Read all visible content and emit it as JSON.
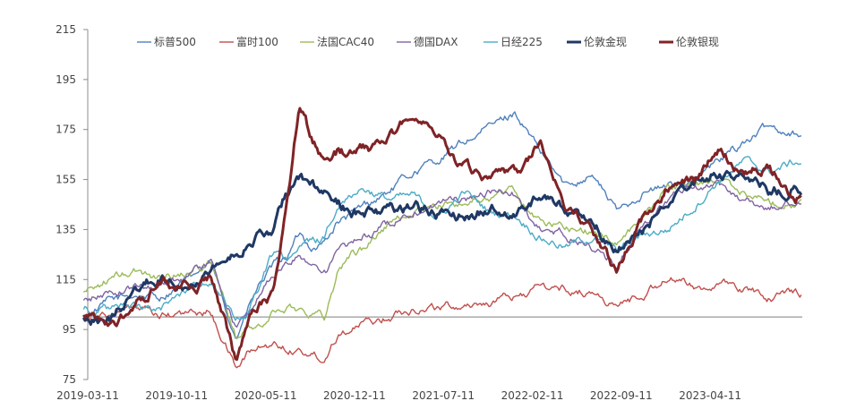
{
  "chart_data": {
    "type": "line",
    "title": "",
    "xlabel": "",
    "ylabel": "",
    "ylim": [
      75,
      215
    ],
    "yticks": [
      75,
      95,
      115,
      135,
      155,
      175,
      195,
      215
    ],
    "xticks": [
      "2019-03-11",
      "2019-10-11",
      "2020-05-11",
      "2020-12-11",
      "2021-07-11",
      "2022-02-11",
      "2022-09-11",
      "2023-04-11"
    ],
    "baseline": 100,
    "grid": false,
    "legend_position": "top",
    "x": [
      "2019-03",
      "2019-05",
      "2019-07",
      "2019-09",
      "2019-11",
      "2020-01",
      "2020-03",
      "2020-04",
      "2020-05",
      "2020-06",
      "2020-07",
      "2020-08",
      "2020-09",
      "2020-10",
      "2020-11",
      "2020-12",
      "2021-01",
      "2021-03",
      "2021-05",
      "2021-07",
      "2021-09",
      "2021-11",
      "2022-01",
      "2022-03",
      "2022-05",
      "2022-07",
      "2022-09",
      "2022-11",
      "2023-01",
      "2023-03",
      "2023-05",
      "2023-07",
      "2023-09",
      "2023-11"
    ],
    "series": [
      {
        "name": "标普500",
        "color": "#4f81bd",
        "width": 1.4,
        "values": [
          100,
          106,
          109,
          108,
          114,
          121,
          92,
          104,
          114,
          120,
          124,
          133,
          128,
          130,
          138,
          140,
          144,
          150,
          158,
          163,
          170,
          176,
          182,
          165,
          152,
          158,
          142,
          150,
          152,
          155,
          162,
          170,
          176,
          174
        ]
      },
      {
        "name": "富时100",
        "color": "#c0504d",
        "width": 1.4,
        "values": [
          100,
          101,
          103,
          100,
          101,
          102,
          80,
          86,
          88,
          89,
          88,
          87,
          85,
          84,
          94,
          96,
          97,
          100,
          104,
          104,
          105,
          106,
          108,
          112,
          111,
          110,
          104,
          109,
          116,
          112,
          113,
          111,
          108,
          110
        ]
      },
      {
        "name": "法国CAC40",
        "color": "#9bbb59",
        "width": 1.4,
        "values": [
          110,
          115,
          118,
          116,
          118,
          122,
          92,
          95,
          96,
          102,
          104,
          103,
          102,
          100,
          118,
          125,
          127,
          137,
          142,
          144,
          146,
          148,
          150,
          138,
          136,
          134,
          130,
          140,
          152,
          153,
          155,
          150,
          146,
          146
        ]
      },
      {
        "name": "德国DAX",
        "color": "#8064a2",
        "width": 1.4,
        "values": [
          106,
          110,
          112,
          113,
          117,
          122,
          96,
          101,
          111,
          117,
          121,
          124,
          122,
          118,
          126,
          128,
          132,
          137,
          143,
          146,
          147,
          150,
          149,
          134,
          133,
          128,
          120,
          137,
          148,
          150,
          152,
          147,
          143,
          146
        ]
      },
      {
        "name": "日经225",
        "color": "#4bacc6",
        "width": 1.4,
        "values": [
          104,
          103,
          104,
          102,
          111,
          115,
          98,
          102,
          115,
          126,
          123,
          129,
          130,
          131,
          146,
          150,
          152,
          147,
          148,
          140,
          150,
          142,
          141,
          132,
          128,
          132,
          126,
          133,
          135,
          144,
          155,
          162,
          158,
          162
        ]
      },
      {
        "name": "伦敦金现",
        "color": "#1f3864",
        "width": 3,
        "values": [
          100,
          99,
          110,
          116,
          114,
          121,
          125,
          131,
          133,
          135,
          149,
          156,
          152,
          148,
          145,
          143,
          142,
          143,
          145,
          141,
          141,
          143,
          142,
          149,
          143,
          138,
          127,
          134,
          146,
          152,
          158,
          155,
          150,
          152
        ]
      },
      {
        "name": "伦敦银现",
        "color": "#7f2326",
        "width": 3,
        "values": [
          100,
          96,
          103,
          115,
          112,
          116,
          82,
          98,
          104,
          109,
          145,
          185,
          170,
          162,
          166,
          165,
          166,
          170,
          183,
          173,
          160,
          155,
          155,
          170,
          145,
          134,
          118,
          140,
          152,
          153,
          166,
          158,
          160,
          148
        ]
      }
    ]
  }
}
